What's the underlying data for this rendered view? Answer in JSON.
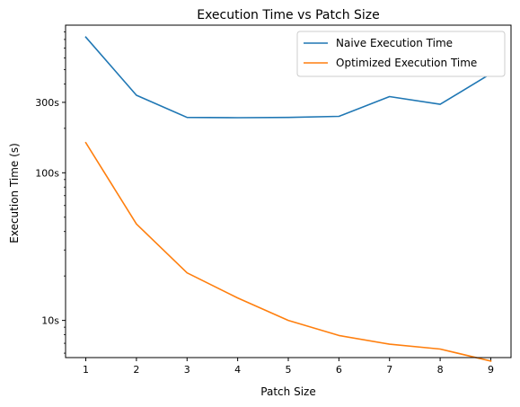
{
  "chart_data": {
    "type": "line",
    "title": "Execution Time vs Patch Size",
    "xlabel": "Patch Size",
    "ylabel": "Execution Time (s)",
    "yscale": "log",
    "x": [
      1,
      2,
      3,
      4,
      5,
      6,
      7,
      8,
      9
    ],
    "xticks": [
      "1",
      "2",
      "3",
      "4",
      "5",
      "6",
      "7",
      "8",
      "9"
    ],
    "yticks": [
      {
        "value": 10,
        "label": "10s"
      },
      {
        "value": 100,
        "label": "100s"
      },
      {
        "value": 300,
        "label": "300s"
      }
    ],
    "xlim": [
      0.6,
      9.4
    ],
    "ylim": [
      5.6,
      1000
    ],
    "grid": false,
    "legend_position": "top-right",
    "series": [
      {
        "name": "Naive Execution Time",
        "color": "#1f77b4",
        "values": [
          830,
          335,
          237,
          236,
          237,
          241,
          328,
          291,
          469
        ]
      },
      {
        "name": "Optimized Execution Time",
        "color": "#ff7f0e",
        "values": [
          160,
          45,
          21,
          14.2,
          10.0,
          7.9,
          6.9,
          6.4,
          5.3
        ]
      }
    ]
  }
}
